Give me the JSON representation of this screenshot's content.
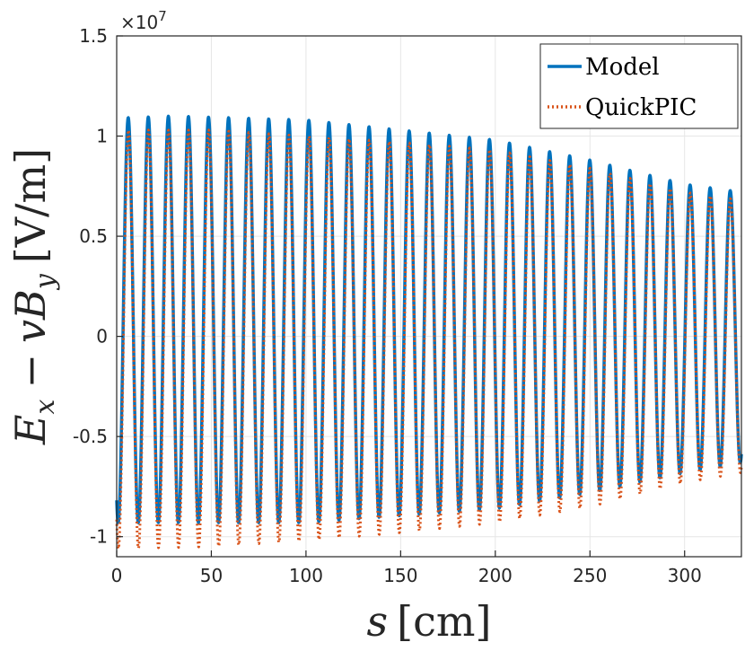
{
  "chart_data": {
    "type": "line",
    "title": "",
    "xlabel": {
      "symbol": "s",
      "unit": "[cm]"
    },
    "ylabel": {
      "e": "E",
      "e_sub": "x",
      "minus": "−",
      "v": "v",
      "b": "B",
      "b_sub": "y",
      "unit": "[V/m]"
    },
    "exponent": {
      "base": "×10",
      "power": "7"
    },
    "xlim": [
      0,
      330
    ],
    "ylim": [
      -1.1,
      1.5
    ],
    "x_ticks": [
      0,
      50,
      100,
      150,
      200,
      250,
      300
    ],
    "x_tick_labels": [
      "0",
      "50",
      "100",
      "150",
      "200",
      "250",
      "300"
    ],
    "y_ticks": [
      -1,
      -0.5,
      0,
      0.5,
      1,
      1.5
    ],
    "y_tick_labels": [
      "-1",
      "-0.5",
      "0",
      "0.5",
      "1",
      "1.5"
    ],
    "grid": true,
    "legend_position": "top-right",
    "series": [
      {
        "name": "Model",
        "color": "#0072BD",
        "style": "solid",
        "period_cm": 10.6,
        "phase_cm": 0.8,
        "peak_envelope": [
          [
            0,
            1.09
          ],
          [
            30,
            1.1
          ],
          [
            100,
            1.08
          ],
          [
            150,
            1.03
          ],
          [
            200,
            0.98
          ],
          [
            250,
            0.88
          ],
          [
            300,
            0.76
          ],
          [
            330,
            0.72
          ]
        ],
        "trough_envelope": [
          [
            0,
            -0.93
          ],
          [
            100,
            -0.93
          ],
          [
            200,
            -0.86
          ],
          [
            250,
            -0.78
          ],
          [
            300,
            -0.68
          ],
          [
            330,
            -0.63
          ]
        ]
      },
      {
        "name": "QuickPIC",
        "color": "#D95319",
        "style": "dotted",
        "period_cm": 10.6,
        "phase_cm": 0.9,
        "peak_envelope": [
          [
            0,
            1.03
          ],
          [
            50,
            1.03
          ],
          [
            100,
            1.0
          ],
          [
            150,
            0.97
          ],
          [
            200,
            0.93
          ],
          [
            250,
            0.84
          ],
          [
            300,
            0.72
          ],
          [
            330,
            0.68
          ]
        ],
        "trough_envelope": [
          [
            0,
            -1.06
          ],
          [
            50,
            -1.05
          ],
          [
            100,
            -1.02
          ],
          [
            150,
            -0.98
          ],
          [
            200,
            -0.93
          ],
          [
            250,
            -0.85
          ],
          [
            300,
            -0.73
          ],
          [
            330,
            -0.68
          ]
        ]
      }
    ]
  }
}
